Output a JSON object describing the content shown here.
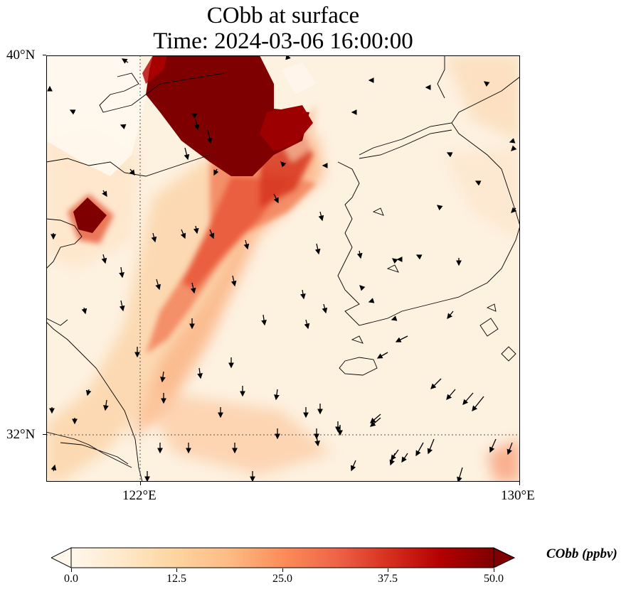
{
  "figure": {
    "title_line1": "CObb at surface",
    "title_line2": "Time: 2024-03-06 16:00:00"
  },
  "map": {
    "extent": {
      "lon_min": 119.5,
      "lon_max": 130,
      "lat_min": 31,
      "lat_max": 40
    },
    "lat_ticks": [
      {
        "value": 40,
        "label": "40°N"
      },
      {
        "value": 32,
        "label": "32°N"
      }
    ],
    "lon_ticks": [
      {
        "value": 122,
        "label": "122°E"
      },
      {
        "value": 130,
        "label": "130°E"
      }
    ],
    "gridlines": {
      "lon": [
        122
      ],
      "lat": [
        32
      ],
      "style": "dotted"
    },
    "colormap": "OrRd",
    "field": "COBB concentration (ppbv)",
    "features": [
      "coastline",
      "wind vectors"
    ]
  },
  "colorbar": {
    "label": "CObb (ppbv)",
    "min": 0.0,
    "max": 50.0,
    "extend": "both",
    "ticks": [
      {
        "value": 0.0,
        "label": "0.0"
      },
      {
        "value": 12.5,
        "label": "12.5"
      },
      {
        "value": 25.0,
        "label": "25.0"
      },
      {
        "value": 37.5,
        "label": "37.5"
      },
      {
        "value": 50.0,
        "label": "50.0"
      }
    ],
    "colors": [
      "#fff7ec",
      "#fee8c8",
      "#fdd49e",
      "#fdbb84",
      "#fc8d59",
      "#ef6548",
      "#d7301f",
      "#b30000",
      "#7f0000"
    ]
  }
}
